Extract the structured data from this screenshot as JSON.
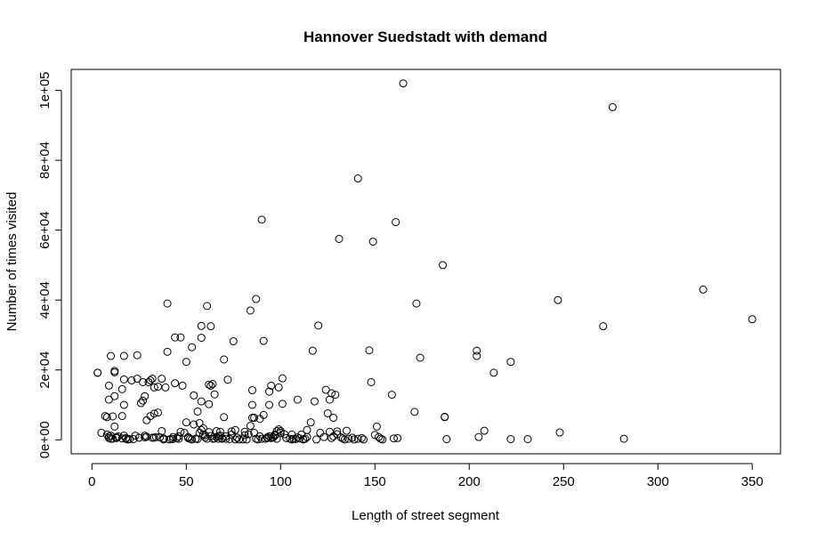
{
  "chart_data": {
    "type": "scatter",
    "title": "Hannover Suedstadt with demand",
    "xlabel": "Length of street segment",
    "ylabel": "Number of times visited",
    "xlim": [
      -11,
      365
    ],
    "ylim": [
      -4000,
      106000
    ],
    "xticks": [
      0,
      50,
      100,
      150,
      200,
      250,
      300,
      350
    ],
    "xtick_labels": [
      "0",
      "50",
      "100",
      "150",
      "200",
      "250",
      "300",
      "350"
    ],
    "yticks": [
      0,
      20000,
      40000,
      60000,
      80000,
      100000
    ],
    "ytick_labels": [
      "0e+00",
      "2e+04",
      "4e+04",
      "6e+04",
      "8e+04",
      "1e+05"
    ],
    "grid": false,
    "marker": "open-circle",
    "point_color": "#000000",
    "points": [
      [
        3,
        19200
      ],
      [
        3,
        19200
      ],
      [
        5,
        2000
      ],
      [
        7,
        6800
      ],
      [
        8,
        6500
      ],
      [
        8,
        1500
      ],
      [
        9,
        1000
      ],
      [
        9,
        500
      ],
      [
        9,
        11500
      ],
      [
        9,
        15500
      ],
      [
        10,
        300
      ],
      [
        10,
        1200
      ],
      [
        10,
        24000
      ],
      [
        11,
        6700
      ],
      [
        11,
        300
      ],
      [
        12,
        19300
      ],
      [
        12,
        19700
      ],
      [
        12,
        12500
      ],
      [
        12,
        3800
      ],
      [
        13,
        500
      ],
      [
        13,
        800
      ],
      [
        14,
        1000
      ],
      [
        16,
        400
      ],
      [
        16,
        14500
      ],
      [
        16,
        6800
      ],
      [
        17,
        24000
      ],
      [
        17,
        17300
      ],
      [
        17,
        10000
      ],
      [
        17,
        1200
      ],
      [
        18,
        500
      ],
      [
        18,
        300
      ],
      [
        19,
        100
      ],
      [
        20,
        200
      ],
      [
        21,
        17000
      ],
      [
        22,
        200
      ],
      [
        23,
        1200
      ],
      [
        24,
        24200
      ],
      [
        24,
        17500
      ],
      [
        25,
        600
      ],
      [
        26,
        10500
      ],
      [
        27,
        11200
      ],
      [
        27,
        16500
      ],
      [
        28,
        1200
      ],
      [
        28,
        12500
      ],
      [
        28,
        700
      ],
      [
        29,
        900
      ],
      [
        29,
        5600
      ],
      [
        30,
        16500
      ],
      [
        31,
        6800
      ],
      [
        31,
        17000
      ],
      [
        32,
        17500
      ],
      [
        32,
        600
      ],
      [
        33,
        15000
      ],
      [
        33,
        600
      ],
      [
        33,
        7500
      ],
      [
        34,
        800
      ],
      [
        35,
        15200
      ],
      [
        35,
        7800
      ],
      [
        36,
        700
      ],
      [
        37,
        17500
      ],
      [
        37,
        2500
      ],
      [
        38,
        400
      ],
      [
        38,
        100
      ],
      [
        39,
        15000
      ],
      [
        40,
        39000
      ],
      [
        40,
        25200
      ],
      [
        41,
        100
      ],
      [
        42,
        300
      ],
      [
        43,
        200
      ],
      [
        43,
        800
      ],
      [
        44,
        16200
      ],
      [
        44,
        29300
      ],
      [
        45,
        500
      ],
      [
        46,
        1000
      ],
      [
        46,
        300
      ],
      [
        47,
        2300
      ],
      [
        47,
        29300
      ],
      [
        48,
        15500
      ],
      [
        49,
        2000
      ],
      [
        50,
        22300
      ],
      [
        50,
        5000
      ],
      [
        51,
        800
      ],
      [
        51,
        500
      ],
      [
        52,
        300
      ],
      [
        53,
        26500
      ],
      [
        53,
        100
      ],
      [
        54,
        12700
      ],
      [
        54,
        4400
      ],
      [
        55,
        300
      ],
      [
        55,
        300
      ],
      [
        56,
        8100
      ],
      [
        56,
        200
      ],
      [
        57,
        4800
      ],
      [
        57,
        2000
      ],
      [
        58,
        32600
      ],
      [
        58,
        29200
      ],
      [
        58,
        2800
      ],
      [
        58,
        11000
      ],
      [
        59,
        3300
      ],
      [
        59,
        1500
      ],
      [
        60,
        700
      ],
      [
        60,
        1300
      ],
      [
        61,
        38300
      ],
      [
        61,
        300
      ],
      [
        62,
        15800
      ],
      [
        62,
        2200
      ],
      [
        62,
        10200
      ],
      [
        63,
        32500
      ],
      [
        63,
        15500
      ],
      [
        63,
        1100
      ],
      [
        64,
        16000
      ],
      [
        64,
        300
      ],
      [
        65,
        13000
      ],
      [
        65,
        400
      ],
      [
        66,
        2500
      ],
      [
        66,
        800
      ],
      [
        67,
        300
      ],
      [
        67,
        1100
      ],
      [
        68,
        2300
      ],
      [
        68,
        1200
      ],
      [
        69,
        500
      ],
      [
        69,
        300
      ],
      [
        70,
        23000
      ],
      [
        70,
        6500
      ],
      [
        71,
        300
      ],
      [
        71,
        1000
      ],
      [
        72,
        17200
      ],
      [
        73,
        200
      ],
      [
        74,
        2400
      ],
      [
        74,
        1500
      ],
      [
        75,
        28200
      ],
      [
        76,
        2800
      ],
      [
        76,
        100
      ],
      [
        77,
        600
      ],
      [
        78,
        100
      ],
      [
        80,
        100
      ],
      [
        81,
        1300
      ],
      [
        81,
        2300
      ],
      [
        82,
        100
      ],
      [
        83,
        1600
      ],
      [
        84,
        37000
      ],
      [
        84,
        4000
      ],
      [
        85,
        14200
      ],
      [
        85,
        10000
      ],
      [
        85,
        6300
      ],
      [
        86,
        6300
      ],
      [
        86,
        2000
      ],
      [
        87,
        40300
      ],
      [
        87,
        300
      ],
      [
        88,
        100
      ],
      [
        89,
        6000
      ],
      [
        89,
        1000
      ],
      [
        90,
        63000
      ],
      [
        90,
        300
      ],
      [
        91,
        7100
      ],
      [
        91,
        28300
      ],
      [
        92,
        300
      ],
      [
        93,
        500
      ],
      [
        93,
        700
      ],
      [
        94,
        10000
      ],
      [
        94,
        1000
      ],
      [
        94,
        13800
      ],
      [
        95,
        15500
      ],
      [
        95,
        500
      ],
      [
        96,
        800
      ],
      [
        96,
        600
      ],
      [
        97,
        1500
      ],
      [
        97,
        1200
      ],
      [
        98,
        300
      ],
      [
        98,
        2500
      ],
      [
        99,
        15000
      ],
      [
        99,
        3000
      ],
      [
        100,
        2500
      ],
      [
        100,
        2000
      ],
      [
        101,
        17600
      ],
      [
        101,
        10300
      ],
      [
        102,
        1600
      ],
      [
        103,
        500
      ],
      [
        105,
        300
      ],
      [
        106,
        100
      ],
      [
        106,
        1500
      ],
      [
        107,
        300
      ],
      [
        108,
        200
      ],
      [
        109,
        700
      ],
      [
        109,
        11500
      ],
      [
        110,
        400
      ],
      [
        111,
        1500
      ],
      [
        112,
        100
      ],
      [
        112,
        200
      ],
      [
        113,
        300
      ],
      [
        114,
        2800
      ],
      [
        114,
        800
      ],
      [
        116,
        5000
      ],
      [
        117,
        25500
      ],
      [
        118,
        11000
      ],
      [
        119,
        100
      ],
      [
        120,
        32700
      ],
      [
        121,
        2000
      ],
      [
        123,
        800
      ],
      [
        124,
        14300
      ],
      [
        125,
        7600
      ],
      [
        126,
        11500
      ],
      [
        126,
        2300
      ],
      [
        127,
        13300
      ],
      [
        127,
        500
      ],
      [
        128,
        6300
      ],
      [
        128,
        1000
      ],
      [
        129,
        12900
      ],
      [
        130,
        2400
      ],
      [
        130,
        1600
      ],
      [
        131,
        57500
      ],
      [
        132,
        700
      ],
      [
        133,
        400
      ],
      [
        134,
        100
      ],
      [
        135,
        2600
      ],
      [
        136,
        300
      ],
      [
        138,
        600
      ],
      [
        139,
        100
      ],
      [
        141,
        300
      ],
      [
        141,
        74800
      ],
      [
        143,
        500
      ],
      [
        144,
        100
      ],
      [
        147,
        25600
      ],
      [
        148,
        16500
      ],
      [
        149,
        56700
      ],
      [
        150,
        1400
      ],
      [
        151,
        3800
      ],
      [
        152,
        800
      ],
      [
        153,
        300
      ],
      [
        154,
        100
      ],
      [
        159,
        12900
      ],
      [
        160,
        400
      ],
      [
        161,
        62300
      ],
      [
        162,
        500
      ],
      [
        165,
        102000
      ],
      [
        171,
        8000
      ],
      [
        172,
        39000
      ],
      [
        174,
        23500
      ],
      [
        186,
        50000
      ],
      [
        187,
        6500
      ],
      [
        187,
        6600
      ],
      [
        188,
        200
      ],
      [
        204,
        24000
      ],
      [
        204,
        25500
      ],
      [
        205,
        800
      ],
      [
        208,
        2600
      ],
      [
        213,
        19200
      ],
      [
        222,
        200
      ],
      [
        222,
        22300
      ],
      [
        231,
        200
      ],
      [
        247,
        40000
      ],
      [
        248,
        2100
      ],
      [
        271,
        32500
      ],
      [
        276,
        95200
      ],
      [
        282,
        300
      ],
      [
        324,
        43000
      ],
      [
        350,
        34500
      ]
    ]
  }
}
